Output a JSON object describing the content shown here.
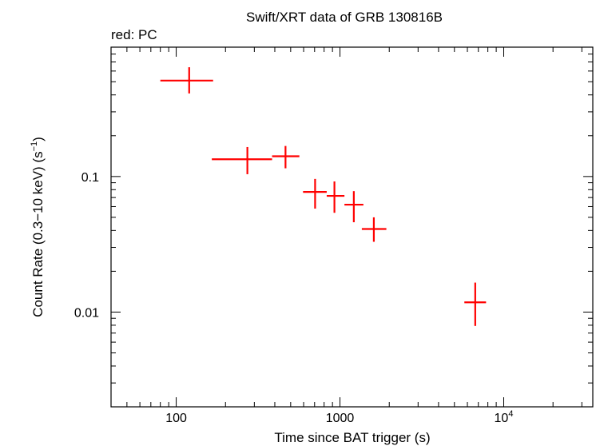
{
  "chart_data": {
    "type": "scatter",
    "title": "Swift/XRT data of GRB 130816B",
    "subtitle": "red: PC",
    "xlabel": "Time since BAT trigger (s)",
    "ylabel_main": "Count Rate (0.3−10 keV) (s",
    "ylabel_sup": "−1",
    "ylabel_end": ")",
    "x_scale": "log",
    "y_scale": "log",
    "xlim": [
      40,
      35000
    ],
    "ylim": [
      0.002,
      0.9
    ],
    "x_ticks": [
      {
        "value": 100,
        "label": "100",
        "sup": ""
      },
      {
        "value": 1000,
        "label": "1000",
        "sup": ""
      },
      {
        "value": 10000,
        "label": "10",
        "sup": "4"
      }
    ],
    "y_ticks": [
      {
        "value": 0.1,
        "label": "0.1"
      },
      {
        "value": 0.01,
        "label": "0.01"
      }
    ],
    "grid": false,
    "series": [
      {
        "color": "#ff0000",
        "points": [
          {
            "x": 120,
            "xlo": 80,
            "xhi": 168,
            "y": 0.51,
            "ylo": 0.41,
            "yhi": 0.64
          },
          {
            "x": 272,
            "xlo": 165,
            "xhi": 385,
            "y": 0.134,
            "ylo": 0.104,
            "yhi": 0.165
          },
          {
            "x": 465,
            "xlo": 385,
            "xhi": 565,
            "y": 0.141,
            "ylo": 0.115,
            "yhi": 0.168
          },
          {
            "x": 705,
            "xlo": 595,
            "xhi": 830,
            "y": 0.077,
            "ylo": 0.058,
            "yhi": 0.096
          },
          {
            "x": 925,
            "xlo": 830,
            "xhi": 1065,
            "y": 0.072,
            "ylo": 0.054,
            "yhi": 0.092
          },
          {
            "x": 1215,
            "xlo": 1065,
            "xhi": 1390,
            "y": 0.062,
            "ylo": 0.046,
            "yhi": 0.078
          },
          {
            "x": 1610,
            "xlo": 1360,
            "xhi": 1920,
            "y": 0.041,
            "ylo": 0.033,
            "yhi": 0.05
          },
          {
            "x": 6700,
            "xlo": 5750,
            "xhi": 7800,
            "y": 0.0118,
            "ylo": 0.0079,
            "yhi": 0.0165
          }
        ]
      }
    ]
  }
}
